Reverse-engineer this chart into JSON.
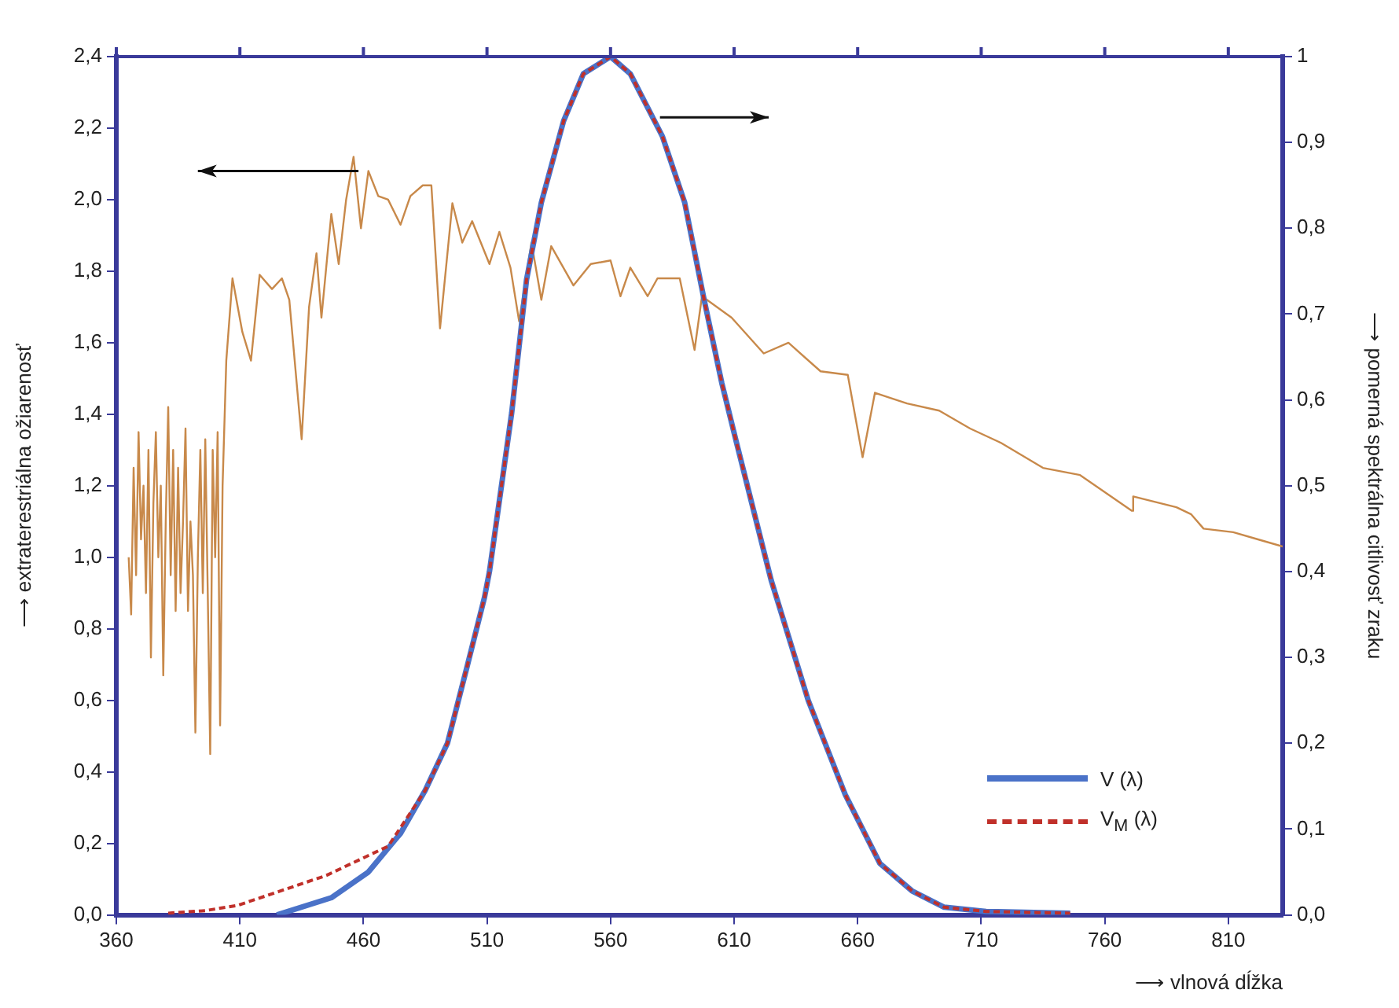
{
  "chart_data": {
    "type": "line",
    "xlabel": "⟶ vlnová dĺžka",
    "ylabel": "⟶ extraterestriálna ožiarenosť",
    "y2label": "⟶ pomerná spektrálna citlivosť zraku",
    "xlim": [
      360,
      832
    ],
    "xticks": [
      360,
      410,
      460,
      510,
      560,
      610,
      660,
      710,
      760,
      810
    ],
    "ylim": [
      0,
      2.4
    ],
    "yticks": [
      {
        "value": 0,
        "label": "0,0"
      },
      {
        "value": 0.2,
        "label": "0,2"
      },
      {
        "value": 0.4,
        "label": "0,4"
      },
      {
        "value": 0.6,
        "label": "0,6"
      },
      {
        "value": 0.8,
        "label": "0,8"
      },
      {
        "value": 1.0,
        "label": "1,0"
      },
      {
        "value": 1.2,
        "label": "1,2"
      },
      {
        "value": 1.4,
        "label": "1,4"
      },
      {
        "value": 1.6,
        "label": "1,6"
      },
      {
        "value": 1.8,
        "label": "1,8"
      },
      {
        "value": 2.0,
        "label": "2,0"
      },
      {
        "value": 2.2,
        "label": "2,2"
      },
      {
        "value": 2.4,
        "label": "2,4"
      }
    ],
    "y2lim": [
      0,
      1
    ],
    "y2ticks": [
      {
        "value": 0,
        "label": "0,0"
      },
      {
        "value": 0.1,
        "label": "0,1"
      },
      {
        "value": 0.2,
        "label": "0,2"
      },
      {
        "value": 0.3,
        "label": "0,3"
      },
      {
        "value": 0.4,
        "label": "0,4"
      },
      {
        "value": 0.5,
        "label": "0,5"
      },
      {
        "value": 0.6,
        "label": "0,6"
      },
      {
        "value": 0.7,
        "label": "0,7"
      },
      {
        "value": 0.8,
        "label": "0,8"
      },
      {
        "value": 0.9,
        "label": "0,9"
      },
      {
        "value": 1,
        "label": "1"
      }
    ],
    "grid": false,
    "legend": "bottom right",
    "marker": "none",
    "series": [
      {
        "color": "#c8894a",
        "line_style": "solid",
        "x": [
          365,
          366,
          367,
          368,
          369,
          370,
          371,
          372,
          373,
          374,
          375,
          376,
          377,
          378,
          379,
          380,
          381,
          382,
          383,
          384,
          385,
          386,
          387,
          388,
          389,
          390,
          391,
          392,
          393,
          394,
          395,
          396,
          397,
          398,
          399,
          400,
          401,
          402,
          403,
          404.5,
          407,
          411,
          414.5,
          418,
          423,
          427,
          430,
          435,
          438,
          441,
          443,
          447,
          450,
          453,
          456,
          459,
          462,
          466,
          470,
          475,
          479,
          484,
          487.5,
          491,
          496,
          500,
          504,
          511,
          515,
          519.5,
          523,
          528,
          532,
          536,
          545,
          552,
          560,
          564,
          568,
          575,
          579,
          588,
          594,
          597,
          609,
          622,
          632,
          645,
          656,
          662,
          667,
          680,
          693,
          705.5,
          718,
          735,
          750,
          771,
          771.5,
          789,
          795,
          800,
          812,
          822,
          832
        ],
        "values": [
          1.0,
          0.84,
          1.25,
          0.95,
          1.35,
          1.05,
          1.2,
          0.9,
          1.3,
          0.72,
          1.15,
          1.35,
          1.0,
          1.2,
          0.67,
          1.1,
          1.42,
          0.95,
          1.3,
          0.85,
          1.25,
          0.9,
          1.1,
          1.36,
          0.85,
          1.1,
          0.95,
          0.51,
          1.0,
          1.3,
          0.9,
          1.33,
          0.9,
          0.45,
          1.3,
          1.0,
          1.35,
          0.53,
          1.2,
          1.55,
          1.78,
          1.63,
          1.55,
          1.79,
          1.75,
          1.78,
          1.72,
          1.33,
          1.7,
          1.85,
          1.67,
          1.96,
          1.82,
          2.0,
          2.12,
          1.92,
          2.08,
          2.01,
          2.0,
          1.93,
          2.01,
          2.04,
          2.04,
          1.64,
          1.99,
          1.88,
          1.94,
          1.82,
          1.91,
          1.81,
          1.66,
          1.88,
          1.72,
          1.87,
          1.76,
          1.82,
          1.83,
          1.73,
          1.81,
          1.73,
          1.78,
          1.78,
          1.58,
          1.73,
          1.67,
          1.57,
          1.6,
          1.52,
          1.51,
          1.28,
          1.46,
          1.43,
          1.41,
          1.36,
          1.32,
          1.25,
          1.23,
          1.13,
          1.17,
          1.14,
          1.12,
          1.08,
          1.07,
          1.05,
          1.03
        ]
      },
      {
        "name": "V (λ)",
        "color": "#4a72c8",
        "line_style": "solid",
        "axis": "y2",
        "x": [
          425,
          447,
          462,
          475,
          485,
          494,
          502,
          509,
          511,
          520,
          526,
          532,
          541,
          549,
          560,
          568,
          581,
          590,
          598,
          605,
          611,
          618,
          625,
          640,
          655,
          669,
          682,
          695,
          712,
          746
        ],
        "values": [
          0,
          0.02,
          0.05,
          0.095,
          0.145,
          0.2,
          0.29,
          0.37,
          0.4,
          0.585,
          0.74,
          0.83,
          0.925,
          0.98,
          1.0,
          0.98,
          0.907,
          0.83,
          0.715,
          0.62,
          0.55,
          0.47,
          0.39,
          0.25,
          0.14,
          0.06,
          0.028,
          0.009,
          0.004,
          0.002
        ]
      },
      {
        "name": "V$_{M}$ (λ)",
        "color": "#c0302a",
        "line_style": "dashed",
        "axis": "y2",
        "x": [
          381,
          396,
          409,
          425.5,
          445,
          456,
          470,
          485,
          494,
          502,
          509,
          511,
          520,
          526,
          532,
          541,
          549,
          560,
          568,
          581,
          590,
          598,
          605,
          611,
          618,
          625,
          640,
          655,
          669,
          682,
          695,
          712,
          746
        ],
        "values": [
          0.002,
          0.005,
          0.011,
          0.027,
          0.046,
          0.061,
          0.08,
          0.145,
          0.2,
          0.29,
          0.37,
          0.4,
          0.585,
          0.74,
          0.83,
          0.925,
          0.98,
          1.0,
          0.98,
          0.907,
          0.83,
          0.715,
          0.62,
          0.55,
          0.47,
          0.39,
          0.25,
          0.14,
          0.06,
          0.028,
          0.009,
          0.004,
          0.002
        ]
      }
    ]
  }
}
